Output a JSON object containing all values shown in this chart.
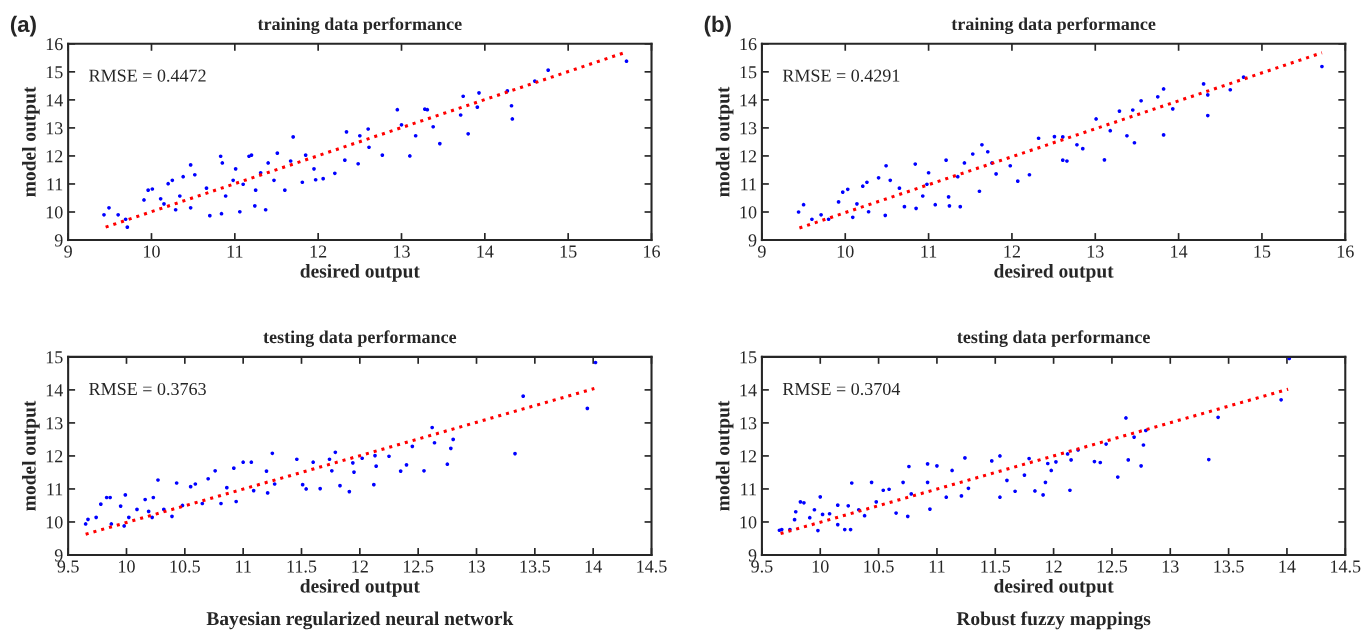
{
  "chart_data": [
    {
      "type": "scatter",
      "title": "training data performance",
      "xlabel": "desired output",
      "ylabel": "model output",
      "annotations": [
        "RMSE = 0.4472",
        "(a)"
      ],
      "xlim": [
        9,
        16
      ],
      "ylim": [
        9,
        16
      ],
      "xticks": [
        9,
        10,
        11,
        12,
        13,
        14,
        15,
        16
      ],
      "yticks": [
        9,
        10,
        11,
        12,
        13,
        14,
        15,
        16
      ],
      "grid": false,
      "legend": false,
      "series": [
        {
          "type": "scatter",
          "color": "#0000ff",
          "marker": "circle",
          "x": [
            9.43,
            9.49,
            9.6,
            9.71,
            9.69,
            9.91,
            9.96,
            10.01,
            10.11,
            10.2,
            10.25,
            10.29,
            10.38,
            10.47,
            10.52,
            10.47,
            10.7,
            10.83,
            10.85,
            10.84,
            10.89,
            11.01,
            11.06,
            11.17,
            11.2,
            11.24,
            11.25,
            11.37,
            11.4,
            11.51,
            11.6,
            11.7,
            11.85,
            11.81,
            11.95,
            11.97,
            12.06,
            12.2,
            12.32,
            12.34,
            12.5,
            12.6,
            12.61,
            12.48,
            12.77,
            12.95,
            13.0,
            13.1,
            13.17,
            13.28,
            13.38,
            13.46,
            13.31,
            13.74,
            13.71,
            13.8,
            13.93,
            13.91,
            14.27,
            14.32,
            14.33,
            14.6,
            14.76,
            15.7,
            10.66,
            10.98,
            11.31,
            11.67,
            10.15,
            10.34,
            11.1,
            11.47
          ],
          "values": [
            9.9,
            10.15,
            9.9,
            9.46,
            9.74,
            10.43,
            10.78,
            10.82,
            10.47,
            11.01,
            11.13,
            10.08,
            11.26,
            11.68,
            11.33,
            10.15,
            9.87,
            11.99,
            11.75,
            9.94,
            10.57,
            11.54,
            10.01,
            11.99,
            12.03,
            10.22,
            10.78,
            10.08,
            11.75,
            12.1,
            10.78,
            12.68,
            12.03,
            11.06,
            11.54,
            11.15,
            11.19,
            11.38,
            11.85,
            12.86,
            12.72,
            12.96,
            12.31,
            11.72,
            12.03,
            13.65,
            13.11,
            12.0,
            12.72,
            13.67,
            13.04,
            12.44,
            13.65,
            14.13,
            13.46,
            12.79,
            14.25,
            13.74,
            14.32,
            13.79,
            13.32,
            14.67,
            15.06,
            15.38,
            10.85,
            11.13,
            11.4,
            11.82,
            10.29,
            10.57,
            10.99,
            11.13
          ]
        },
        {
          "type": "line",
          "color": "#ff0000",
          "line_style": "dotted",
          "marker": "none",
          "x": [
            9.45,
            15.7
          ],
          "values": [
            9.46,
            15.71
          ]
        }
      ]
    },
    {
      "type": "scatter",
      "title": "training data performance",
      "xlabel": "desired output",
      "ylabel": "model output",
      "annotations": [
        "RMSE = 0.4291",
        "(b)"
      ],
      "xlim": [
        9,
        16
      ],
      "ylim": [
        9,
        16
      ],
      "xticks": [
        9,
        10,
        11,
        12,
        13,
        14,
        15,
        16
      ],
      "yticks": [
        9,
        10,
        11,
        12,
        13,
        14,
        15,
        16
      ],
      "grid": false,
      "legend": false,
      "series": [
        {
          "type": "scatter",
          "color": "#0000ff",
          "marker": "circle",
          "x": [
            9.44,
            9.5,
            9.6,
            9.71,
            9.8,
            9.92,
            9.97,
            10.03,
            10.09,
            10.21,
            10.26,
            10.28,
            10.4,
            10.49,
            10.48,
            10.54,
            10.71,
            10.84,
            10.85,
            10.93,
            11.0,
            11.08,
            11.21,
            11.24,
            11.25,
            11.38,
            11.43,
            11.53,
            11.61,
            11.64,
            11.71,
            11.81,
            11.98,
            12.07,
            12.21,
            12.32,
            12.51,
            12.61,
            12.61,
            12.66,
            12.78,
            12.85,
            13.01,
            13.11,
            13.18,
            13.29,
            13.38,
            13.45,
            13.47,
            13.55,
            13.75,
            13.82,
            13.82,
            13.93,
            14.3,
            14.35,
            14.35,
            14.62,
            14.78,
            15.72,
            10.65,
            10.98,
            11.35,
            11.76,
            10.14
          ],
          "values": [
            10.0,
            10.26,
            9.74,
            9.9,
            9.74,
            10.36,
            10.71,
            10.81,
            9.81,
            10.92,
            11.06,
            10.01,
            11.22,
            11.65,
            9.88,
            11.13,
            10.19,
            11.71,
            10.13,
            10.57,
            11.4,
            10.26,
            11.85,
            10.54,
            10.22,
            10.19,
            11.75,
            12.07,
            10.74,
            12.4,
            12.15,
            11.36,
            11.65,
            11.1,
            11.33,
            12.63,
            12.69,
            12.68,
            11.85,
            11.82,
            12.4,
            12.26,
            13.32,
            11.86,
            12.9,
            13.6,
            12.72,
            13.64,
            12.47,
            13.97,
            14.11,
            14.39,
            12.75,
            13.68,
            14.57,
            13.44,
            14.18,
            14.36,
            14.81,
            15.19,
            10.85,
            10.99,
            11.26,
            11.75,
            10.29
          ]
        },
        {
          "type": "line",
          "color": "#ff0000",
          "line_style": "dotted",
          "marker": "none",
          "x": [
            9.45,
            15.72
          ],
          "values": [
            9.43,
            15.68
          ]
        }
      ]
    },
    {
      "type": "scatter",
      "title": "testing data performance",
      "xlabel": "desired output",
      "ylabel": "model output",
      "annotations": [
        "RMSE = 0.3763",
        "Bayesian regularized neural network"
      ],
      "xlim": [
        9.5,
        14.5
      ],
      "ylim": [
        9,
        15
      ],
      "xticks": [
        9.5,
        10,
        10.5,
        11,
        11.5,
        12,
        12.5,
        13,
        13.5,
        14,
        14.5
      ],
      "yticks": [
        9,
        10,
        11,
        12,
        13,
        14,
        15
      ],
      "grid": false,
      "legend": false,
      "series": [
        {
          "type": "scatter",
          "color": "#0000ff",
          "marker": "circle",
          "x": [
            9.65,
            9.67,
            9.74,
            9.78,
            9.83,
            9.86,
            9.87,
            9.95,
            9.99,
            9.98,
            10.02,
            10.09,
            10.16,
            10.19,
            10.22,
            10.23,
            10.27,
            10.32,
            10.39,
            10.43,
            10.48,
            10.55,
            10.59,
            10.65,
            10.7,
            10.76,
            10.81,
            10.86,
            10.92,
            10.94,
            11.0,
            11.07,
            11.09,
            11.2,
            11.21,
            11.25,
            11.27,
            11.46,
            11.51,
            11.54,
            11.6,
            11.66,
            11.74,
            11.79,
            11.76,
            11.83,
            11.91,
            11.94,
            11.95,
            12.02,
            12.12,
            12.13,
            12.14,
            12.25,
            12.35,
            12.4,
            12.45,
            12.55,
            12.62,
            12.64,
            12.75,
            12.78,
            12.8,
            13.33,
            13.4,
            13.95,
            14.02
          ],
          "values": [
            9.94,
            10.08,
            10.14,
            10.54,
            10.74,
            10.74,
            9.94,
            10.48,
            10.82,
            9.88,
            10.14,
            10.38,
            10.68,
            10.32,
            10.14,
            10.74,
            11.27,
            10.38,
            10.17,
            11.18,
            10.5,
            11.07,
            11.15,
            10.56,
            11.31,
            11.55,
            10.56,
            11.04,
            11.63,
            10.62,
            11.81,
            11.81,
            10.95,
            11.54,
            10.88,
            12.08,
            11.15,
            11.9,
            11.13,
            11.0,
            11.81,
            11.01,
            11.9,
            12.11,
            11.55,
            11.1,
            10.92,
            11.79,
            11.51,
            11.93,
            11.13,
            12.01,
            11.69,
            11.99,
            11.54,
            11.73,
            12.29,
            11.55,
            12.86,
            12.4,
            11.75,
            12.23,
            12.5,
            12.07,
            13.81,
            13.44,
            14.83
          ]
        },
        {
          "type": "line",
          "color": "#ff0000",
          "line_style": "dotted",
          "marker": "none",
          "x": [
            9.65,
            14.01
          ],
          "values": [
            9.63,
            14.04
          ]
        }
      ]
    },
    {
      "type": "scatter",
      "title": "testing data performance",
      "xlabel": "desired output",
      "ylabel": "model output",
      "annotations": [
        "RMSE = 0.3704",
        "Robust fuzzy mappings"
      ],
      "xlim": [
        9.5,
        14.5
      ],
      "ylim": [
        9,
        15
      ],
      "xticks": [
        9.5,
        10,
        10.5,
        11,
        11.5,
        12,
        12.5,
        13,
        13.5,
        14,
        14.5
      ],
      "yticks": [
        9,
        10,
        11,
        12,
        13,
        14,
        15
      ],
      "grid": false,
      "legend": false,
      "series": [
        {
          "type": "scatter",
          "color": "#0000ff",
          "marker": "circle",
          "x": [
            9.65,
            9.67,
            9.74,
            9.78,
            9.79,
            9.83,
            9.86,
            9.91,
            9.95,
            9.98,
            10.0,
            10.02,
            10.08,
            10.15,
            10.15,
            10.21,
            10.26,
            10.24,
            10.27,
            10.33,
            10.38,
            10.44,
            10.48,
            10.54,
            10.59,
            10.65,
            10.71,
            10.75,
            10.76,
            10.78,
            10.92,
            10.92,
            10.94,
            11.0,
            11.08,
            11.13,
            11.21,
            11.24,
            11.27,
            11.47,
            11.54,
            11.54,
            11.6,
            11.67,
            11.75,
            11.79,
            11.84,
            11.91,
            11.93,
            11.95,
            11.98,
            12.02,
            12.12,
            12.14,
            12.15,
            12.21,
            12.35,
            12.4,
            12.45,
            12.55,
            12.62,
            12.64,
            12.69,
            12.75,
            12.77,
            12.79,
            13.33,
            13.41,
            13.95,
            14.02
          ],
          "values": [
            9.75,
            9.77,
            9.77,
            10.07,
            10.31,
            10.61,
            10.58,
            10.13,
            10.37,
            9.74,
            10.76,
            10.23,
            10.25,
            10.51,
            9.92,
            9.77,
            9.77,
            10.49,
            11.18,
            10.37,
            10.19,
            11.2,
            10.61,
            10.96,
            10.99,
            10.27,
            11.2,
            10.17,
            11.68,
            10.85,
            11.2,
            11.76,
            10.39,
            11.7,
            10.75,
            11.56,
            10.79,
            11.94,
            11.02,
            11.85,
            12.0,
            10.75,
            11.26,
            10.93,
            11.42,
            11.92,
            10.94,
            10.82,
            11.2,
            11.77,
            11.56,
            11.82,
            12.06,
            10.96,
            11.88,
            12.18,
            11.83,
            11.8,
            12.36,
            11.36,
            13.15,
            11.88,
            12.57,
            11.7,
            12.33,
            12.77,
            11.89,
            13.17,
            13.7,
            14.95
          ]
        },
        {
          "type": "line",
          "color": "#ff0000",
          "line_style": "dotted",
          "marker": "none",
          "x": [
            9.66,
            14.01
          ],
          "values": [
            9.65,
            14.02
          ]
        }
      ]
    }
  ]
}
